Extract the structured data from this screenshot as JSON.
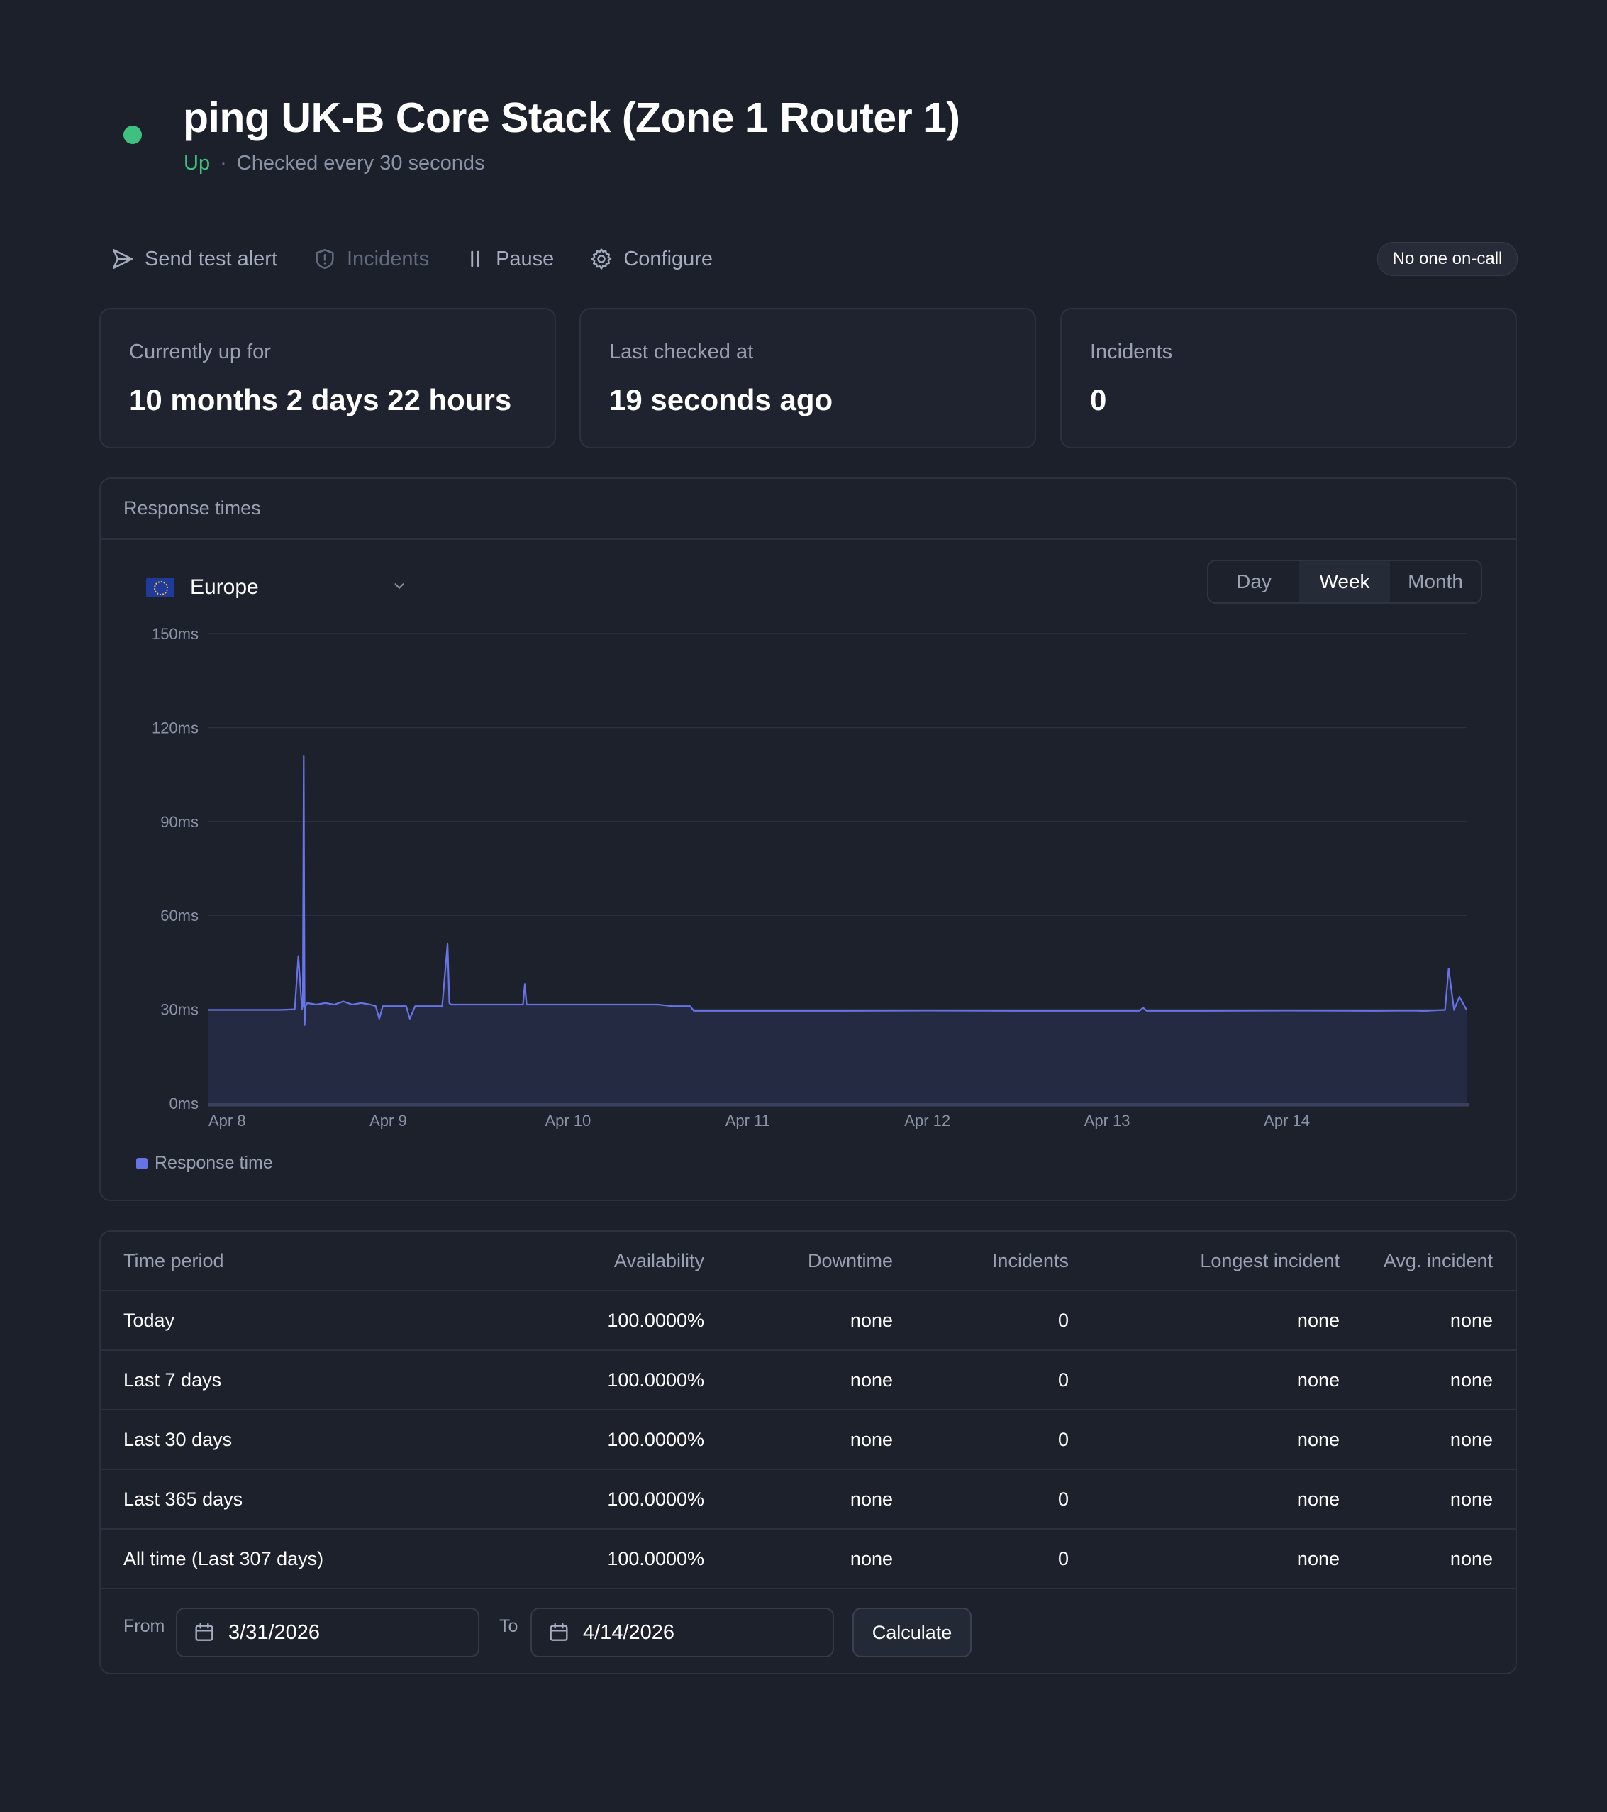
{
  "header": {
    "title": "ping UK-B Core Stack (Zone 1 Router 1)",
    "status": "Up",
    "check_interval": "Checked every 30 seconds"
  },
  "toolbar": {
    "send_test_alert": "Send test alert",
    "incidents": "Incidents",
    "pause": "Pause",
    "configure": "Configure",
    "on_call": "No one on-call"
  },
  "stats": [
    {
      "label": "Currently up for",
      "value": "10 months 2 days 22 hours"
    },
    {
      "label": "Last checked at",
      "value": "19 seconds ago"
    },
    {
      "label": "Incidents",
      "value": "0"
    }
  ],
  "response_panel": {
    "title": "Response times",
    "region": "Europe",
    "ranges": [
      "Day",
      "Week",
      "Month"
    ],
    "active_range": "Week"
  },
  "colors": {
    "status_up": "#3fc07e",
    "series_line": "#6674e6",
    "series_fill": "#232a42"
  },
  "chart_data": {
    "type": "area",
    "y_ticks": [
      "150ms",
      "120ms",
      "90ms",
      "60ms",
      "30ms",
      "0ms"
    ],
    "ylim": [
      0,
      150
    ],
    "x_ticks": [
      "Apr 8",
      "Apr 9",
      "Apr 10",
      "Apr 11",
      "Apr 12",
      "Apr 13",
      "Apr 14"
    ],
    "xlim": [
      0,
      7
    ],
    "legend": [
      "Response time"
    ],
    "series": [
      {
        "name": "Response time",
        "x": [
          0,
          0.4,
          0.48,
          0.5,
          0.52,
          0.525,
          0.53,
          0.535,
          0.54,
          0.55,
          0.6,
          0.65,
          0.7,
          0.75,
          0.8,
          0.85,
          0.9,
          0.93,
          0.95,
          0.97,
          1.0,
          1.1,
          1.12,
          1.15,
          1.3,
          1.33,
          1.34,
          1.35,
          1.4,
          1.5,
          1.7,
          1.75,
          1.76,
          1.77,
          2.0,
          2.3,
          2.5,
          2.58,
          2.63,
          2.68,
          2.7,
          3.0,
          3.5,
          4.0,
          4.5,
          5.0,
          5.18,
          5.2,
          5.22,
          5.5,
          6.0,
          6.5,
          6.7,
          6.75,
          6.78,
          6.8,
          6.88,
          6.9,
          6.93,
          6.96,
          7.0
        ],
        "y": [
          29.8,
          29.8,
          30,
          47,
          30,
          31,
          111,
          25,
          31,
          32,
          31.5,
          32,
          31.5,
          32.5,
          31.5,
          32,
          31.5,
          31,
          27,
          31,
          31,
          31,
          27,
          31,
          31,
          51,
          32,
          31.5,
          31.5,
          31.5,
          31.5,
          31.5,
          38,
          31.5,
          31.5,
          31.5,
          31.5,
          31,
          31,
          31,
          29.5,
          29.5,
          29.5,
          29.6,
          29.5,
          29.5,
          29.5,
          30.5,
          29.5,
          29.5,
          29.6,
          29.5,
          29.6,
          29.5,
          29.5,
          29.6,
          29.8,
          43,
          29.8,
          34,
          29.8
        ]
      }
    ]
  },
  "table": {
    "headers": [
      "Time period",
      "Availability",
      "Downtime",
      "Incidents",
      "Longest incident",
      "Avg. incident"
    ],
    "rows": [
      [
        "Today",
        "100.0000%",
        "none",
        "0",
        "none",
        "none"
      ],
      [
        "Last 7 days",
        "100.0000%",
        "none",
        "0",
        "none",
        "none"
      ],
      [
        "Last 30 days",
        "100.0000%",
        "none",
        "0",
        "none",
        "none"
      ],
      [
        "Last 365 days",
        "100.0000%",
        "none",
        "0",
        "none",
        "none"
      ],
      [
        "All time (Last 307 days)",
        "100.0000%",
        "none",
        "0",
        "none",
        "none"
      ]
    ]
  },
  "range_form": {
    "from_label": "From",
    "from_value": "3/31/2026",
    "to_label": "To",
    "to_value": "4/14/2026",
    "calculate": "Calculate"
  }
}
